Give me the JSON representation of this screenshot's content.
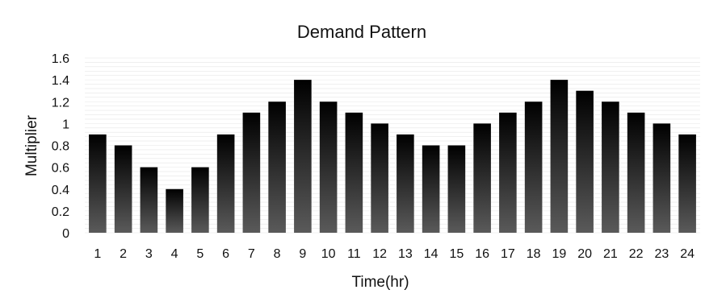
{
  "chart_data": {
    "type": "bar",
    "title": "Demand Pattern",
    "xlabel": "Time(hr)",
    "ylabel": "Multiplier",
    "categories": [
      "1",
      "2",
      "3",
      "4",
      "5",
      "6",
      "7",
      "8",
      "9",
      "10",
      "11",
      "12",
      "13",
      "14",
      "15",
      "16",
      "17",
      "18",
      "19",
      "20",
      "21",
      "22",
      "23",
      "24"
    ],
    "values": [
      0.9,
      0.8,
      0.6,
      0.4,
      0.6,
      0.9,
      1.1,
      1.2,
      1.4,
      1.2,
      1.1,
      1.0,
      0.9,
      0.8,
      0.8,
      1.0,
      1.1,
      1.2,
      1.4,
      1.3,
      1.2,
      1.1,
      1.0,
      0.9
    ],
    "ylim": [
      0,
      1.6
    ],
    "yticks": [
      "0",
      "0.2",
      "0.4",
      "0.6",
      "0.8",
      "1",
      "1.2",
      "1.4",
      "1.6"
    ],
    "grid": true,
    "legend": "none",
    "colors": {
      "bar_top": "#000000",
      "bar_bottom": "#5a5a5a",
      "grid": "#e6e6e6"
    }
  }
}
